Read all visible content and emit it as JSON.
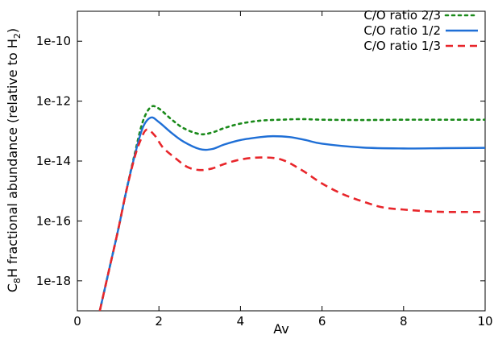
{
  "chart_data": {
    "type": "line",
    "title": "",
    "xlabel": "Av",
    "ylabel": "C8H fractional abundance (relative to H2)",
    "ylabel_parts": {
      "pre": "C",
      "sub1": "8",
      "mid": "H fractional abundance (relative to H",
      "sub2": "2",
      "post": ")"
    },
    "xlim": [
      0,
      10
    ],
    "ylim_log10": [
      -19,
      -9
    ],
    "yscale": "log",
    "grid": false,
    "legend_position": "top-right",
    "x_ticks": [
      0,
      2,
      4,
      6,
      8,
      10
    ],
    "x_tick_labels": [
      "0",
      "2",
      "4",
      "6",
      "8",
      "10"
    ],
    "y_ticks_log10": [
      -10,
      -12,
      -14,
      -16,
      -18
    ],
    "y_tick_labels": [
      "1e-10",
      "1e-12",
      "1e-14",
      "1e-16",
      "1e-18"
    ],
    "series": [
      {
        "name": "C/O ratio 2/3",
        "color": "#1a8a1a",
        "style": "dotted",
        "x": [
          0.55,
          0.8,
          1.0,
          1.2,
          1.4,
          1.6,
          1.8,
          2.0,
          2.3,
          2.6,
          3.0,
          3.3,
          3.6,
          4.0,
          4.5,
          5.0,
          5.5,
          6.0,
          7.0,
          8.0,
          9.0,
          10.0
        ],
        "log10_y": [
          -19.0,
          -17.5,
          -16.3,
          -15.0,
          -13.8,
          -12.7,
          -12.2,
          -12.25,
          -12.6,
          -12.9,
          -13.1,
          -13.05,
          -12.9,
          -12.75,
          -12.65,
          -12.62,
          -12.6,
          -12.62,
          -12.63,
          -12.62,
          -12.62,
          -12.62
        ]
      },
      {
        "name": "C/O ratio 1/2",
        "color": "#1f6fd6",
        "style": "solid",
        "x": [
          0.55,
          0.8,
          1.0,
          1.2,
          1.4,
          1.6,
          1.8,
          2.0,
          2.3,
          2.6,
          3.0,
          3.3,
          3.6,
          4.0,
          4.5,
          4.8,
          5.2,
          5.6,
          6.0,
          7.0,
          8.0,
          9.0,
          10.0
        ],
        "log10_y": [
          -19.0,
          -17.5,
          -16.3,
          -15.0,
          -13.85,
          -12.9,
          -12.55,
          -12.7,
          -13.05,
          -13.35,
          -13.6,
          -13.6,
          -13.45,
          -13.3,
          -13.2,
          -13.17,
          -13.2,
          -13.3,
          -13.42,
          -13.55,
          -13.58,
          -13.57,
          -13.56
        ]
      },
      {
        "name": "C/O ratio 1/3",
        "color": "#e8262b",
        "style": "dashed",
        "x": [
          0.55,
          0.8,
          1.0,
          1.2,
          1.4,
          1.55,
          1.7,
          1.9,
          2.1,
          2.4,
          2.7,
          3.0,
          3.3,
          3.6,
          4.0,
          4.5,
          5.0,
          5.5,
          6.0,
          6.5,
          7.0,
          7.5,
          8.0,
          8.5,
          9.0,
          9.5,
          10.0
        ],
        "log10_y": [
          -19.0,
          -17.5,
          -16.3,
          -15.0,
          -13.9,
          -13.3,
          -12.95,
          -13.15,
          -13.55,
          -13.9,
          -14.2,
          -14.3,
          -14.25,
          -14.1,
          -13.95,
          -13.88,
          -13.95,
          -14.3,
          -14.75,
          -15.1,
          -15.35,
          -15.55,
          -15.62,
          -15.67,
          -15.7,
          -15.7,
          -15.7
        ]
      }
    ]
  }
}
